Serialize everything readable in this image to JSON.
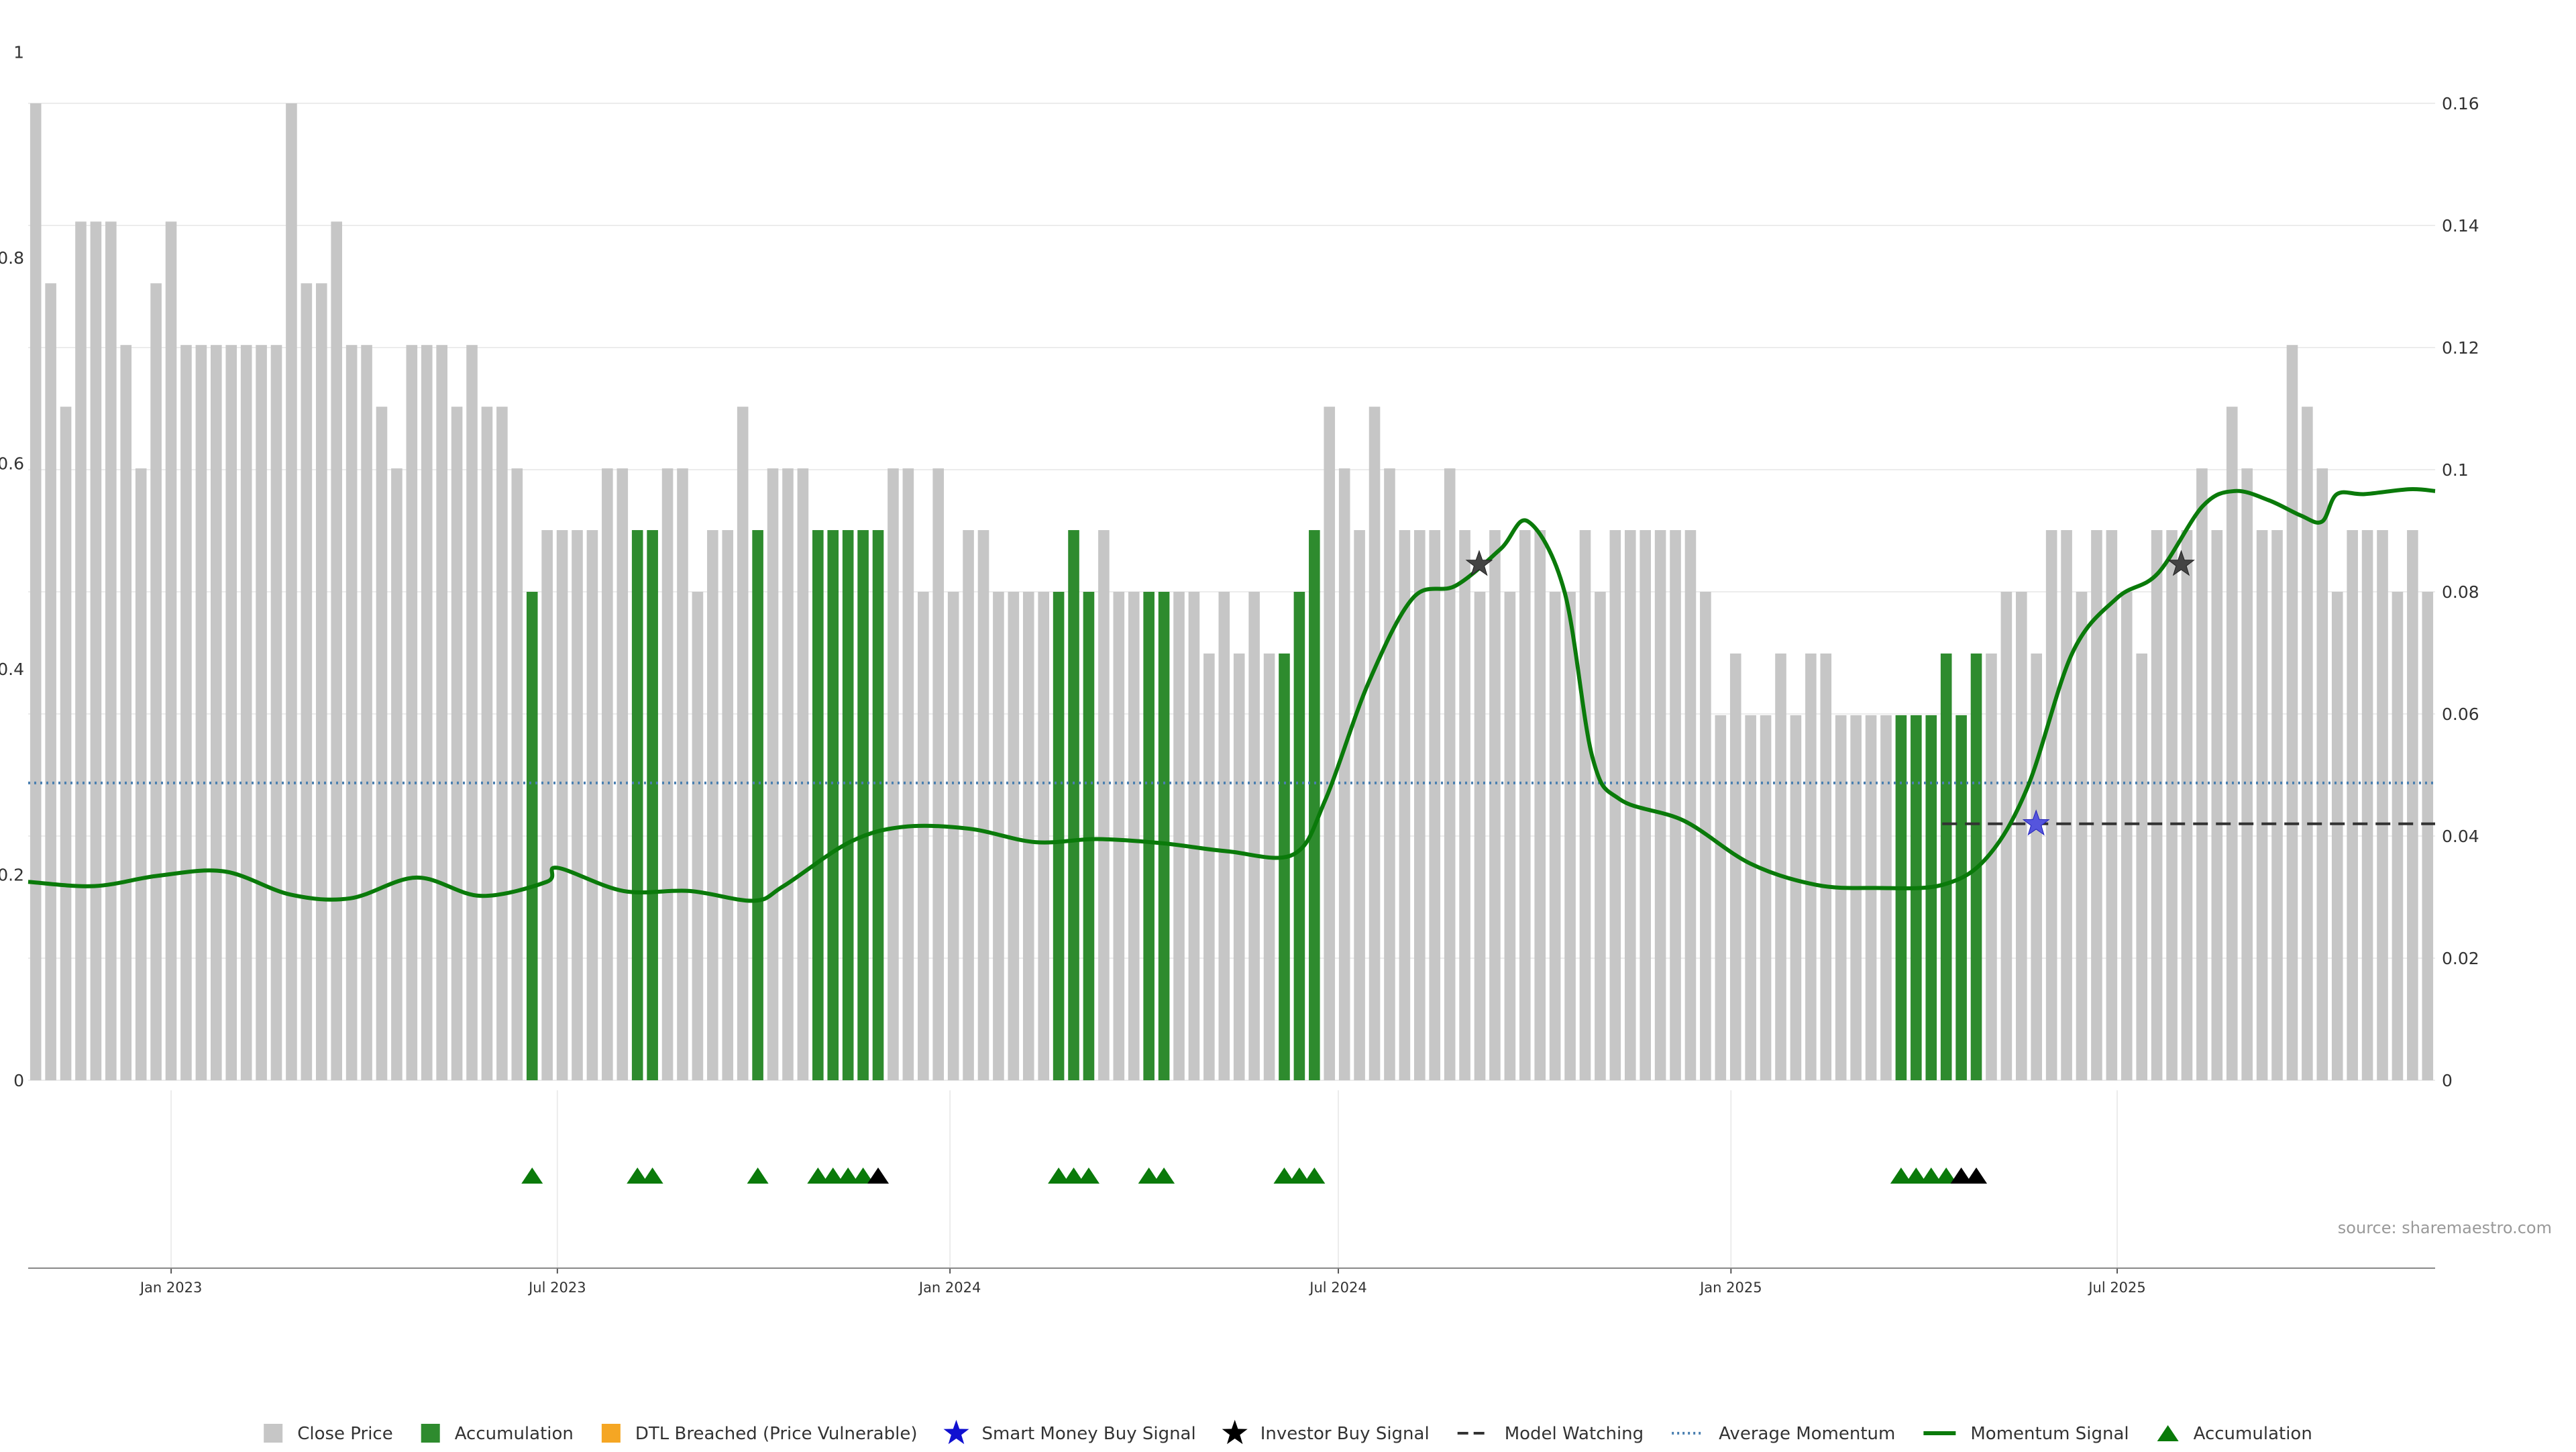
{
  "chart_data": {
    "type": "bar",
    "title": "",
    "source_label": "source: sharemaestro.com",
    "colors": {
      "close_price": "#c6c6c6",
      "accumulation": "#2e8b2e",
      "dtl": "#f5a623",
      "smart_money": "#1010d0",
      "investor": "#000000",
      "model_watching": "#333333",
      "average_momentum": "#4a7fb0",
      "momentum_signal": "#0a7a0a",
      "accumulation_marker": "#0a7a0a"
    },
    "left_axis": {
      "ylim": [
        0,
        0.95
      ],
      "ticks": [
        0,
        0.2,
        0.4,
        0.6,
        0.8,
        1
      ],
      "tick_labels": [
        "0",
        "0.2",
        "0.4",
        "0.6",
        "0.8",
        "1"
      ]
    },
    "right_axis": {
      "ylim": [
        0,
        0.16
      ],
      "ticks": [
        0,
        0.02,
        0.04,
        0.06,
        0.08,
        0.1,
        0.12,
        0.14,
        0.16
      ],
      "tick_labels": [
        "0",
        "0.02",
        "0.04",
        "0.06",
        "0.08",
        "0.1",
        "0.12",
        "0.14",
        "0.16"
      ]
    },
    "x_axis": {
      "start": "2022-10-26",
      "end": "2025-11-27",
      "ticks": [
        {
          "date": "2023-01-01",
          "label": "Jan 2023"
        },
        {
          "date": "2023-07-01",
          "label": "Jul 2023"
        },
        {
          "date": "2024-01-01",
          "label": "Jan 2024"
        },
        {
          "date": "2024-07-01",
          "label": "Jul 2024"
        },
        {
          "date": "2025-01-01",
          "label": "Jan 2025"
        },
        {
          "date": "2025-07-01",
          "label": "Jul 2025"
        }
      ]
    },
    "bars": {
      "values": [
        0.95,
        0.775,
        0.655,
        0.835,
        0.835,
        0.835,
        0.715,
        0.595,
        0.775,
        0.835,
        0.715,
        0.715,
        0.715,
        0.715,
        0.715,
        0.715,
        0.715,
        0.95,
        0.775,
        0.775,
        0.835,
        0.715,
        0.715,
        0.655,
        0.595,
        0.715,
        0.715,
        0.715,
        0.655,
        0.715,
        0.655,
        0.655,
        0.595,
        0.475,
        0.535,
        0.535,
        0.535,
        0.535,
        0.595,
        0.595,
        0.535,
        0.535,
        0.595,
        0.595,
        0.475,
        0.535,
        0.535,
        0.655,
        0.535,
        0.595,
        0.595,
        0.595,
        0.535,
        0.535,
        0.535,
        0.535,
        0.535,
        0.595,
        0.595,
        0.475,
        0.595,
        0.475,
        0.535,
        0.535,
        0.475,
        0.475,
        0.475,
        0.475,
        0.475,
        0.535,
        0.475,
        0.535,
        0.475,
        0.475,
        0.475,
        0.475,
        0.475,
        0.475,
        0.415,
        0.475,
        0.415,
        0.475,
        0.415,
        0.415,
        0.475,
        0.535,
        0.655,
        0.595,
        0.535,
        0.655,
        0.595,
        0.535,
        0.535,
        0.535,
        0.595,
        0.535,
        0.475,
        0.535,
        0.475,
        0.535,
        0.535,
        0.475,
        0.475,
        0.535,
        0.475,
        0.535,
        0.535,
        0.535,
        0.535,
        0.535,
        0.535,
        0.475,
        0.355,
        0.415,
        0.355,
        0.355,
        0.415,
        0.355,
        0.415,
        0.415,
        0.355,
        0.355,
        0.355,
        0.355,
        0.355,
        0.355,
        0.355,
        0.415,
        0.355,
        0.415,
        0.415,
        0.475,
        0.475,
        0.415,
        0.535,
        0.535,
        0.475,
        0.535,
        0.535,
        0.475,
        0.415,
        0.535,
        0.535,
        0.535,
        0.595,
        0.535,
        0.655,
        0.595,
        0.535,
        0.535,
        0.715,
        0.655,
        0.595,
        0.475,
        0.535,
        0.535,
        0.535,
        0.475,
        0.535,
        0.475
      ],
      "accumulation_indices": [
        33,
        40,
        41,
        48,
        52,
        53,
        54,
        55,
        56,
        68,
        69,
        70,
        74,
        75,
        83,
        84,
        85,
        124,
        125,
        126,
        127,
        128,
        129
      ]
    },
    "momentum_signal": [
      {
        "date": "2022-10-26",
        "value": 0.0325
      },
      {
        "date": "2022-11-26",
        "value": 0.0318
      },
      {
        "date": "2022-12-26",
        "value": 0.0335
      },
      {
        "date": "2023-01-26",
        "value": 0.0342
      },
      {
        "date": "2023-02-26",
        "value": 0.0304
      },
      {
        "date": "2023-03-26",
        "value": 0.0298
      },
      {
        "date": "2023-04-26",
        "value": 0.0332
      },
      {
        "date": "2023-05-26",
        "value": 0.0302
      },
      {
        "date": "2023-06-26",
        "value": 0.0325
      },
      {
        "date": "2023-07-01",
        "value": 0.0348
      },
      {
        "date": "2023-08-01",
        "value": 0.031
      },
      {
        "date": "2023-09-01",
        "value": 0.031
      },
      {
        "date": "2023-10-01",
        "value": 0.0294
      },
      {
        "date": "2023-10-15",
        "value": 0.0318
      },
      {
        "date": "2023-11-15",
        "value": 0.039
      },
      {
        "date": "2023-12-10",
        "value": 0.0415
      },
      {
        "date": "2024-01-10",
        "value": 0.0412
      },
      {
        "date": "2024-02-10",
        "value": 0.039
      },
      {
        "date": "2024-03-10",
        "value": 0.0395
      },
      {
        "date": "2024-04-10",
        "value": 0.0388
      },
      {
        "date": "2024-05-10",
        "value": 0.0375
      },
      {
        "date": "2024-06-10",
        "value": 0.037
      },
      {
        "date": "2024-06-25",
        "value": 0.046
      },
      {
        "date": "2024-07-15",
        "value": 0.065
      },
      {
        "date": "2024-08-05",
        "value": 0.079
      },
      {
        "date": "2024-08-25",
        "value": 0.081
      },
      {
        "date": "2024-09-15",
        "value": 0.087
      },
      {
        "date": "2024-09-28",
        "value": 0.0915
      },
      {
        "date": "2024-10-15",
        "value": 0.08
      },
      {
        "date": "2024-10-28",
        "value": 0.053
      },
      {
        "date": "2024-11-10",
        "value": 0.046
      },
      {
        "date": "2024-12-10",
        "value": 0.0425
      },
      {
        "date": "2025-01-10",
        "value": 0.0355
      },
      {
        "date": "2025-02-10",
        "value": 0.032
      },
      {
        "date": "2025-03-10",
        "value": 0.0315
      },
      {
        "date": "2025-04-10",
        "value": 0.032
      },
      {
        "date": "2025-05-01",
        "value": 0.0365
      },
      {
        "date": "2025-05-20",
        "value": 0.048
      },
      {
        "date": "2025-06-10",
        "value": 0.07
      },
      {
        "date": "2025-07-01",
        "value": 0.079
      },
      {
        "date": "2025-07-20",
        "value": 0.083
      },
      {
        "date": "2025-08-10",
        "value": 0.094
      },
      {
        "date": "2025-08-25",
        "value": 0.0965
      },
      {
        "date": "2025-09-10",
        "value": 0.095
      },
      {
        "date": "2025-09-25",
        "value": 0.0925
      },
      {
        "date": "2025-10-05",
        "value": 0.0915
      },
      {
        "date": "2025-10-12",
        "value": 0.096
      },
      {
        "date": "2025-10-25",
        "value": 0.096
      },
      {
        "date": "2025-11-15",
        "value": 0.0968
      },
      {
        "date": "2025-11-27",
        "value": 0.0965
      }
    ],
    "average_momentum": 0.0487,
    "model_watching": {
      "from": "2025-04-10",
      "to": "2025-11-27",
      "value": 0.042
    },
    "smart_money_buy_signals": [
      {
        "date": "2025-05-24",
        "value": 0.042
      }
    ],
    "investor_buy_signals": [
      {
        "date": "2024-09-05",
        "value": 0.0845
      },
      {
        "date": "2025-07-31",
        "value": 0.0845
      }
    ],
    "accumulation_markers": [
      {
        "index": 33,
        "color": "green"
      },
      {
        "index": 40,
        "color": "green"
      },
      {
        "index": 41,
        "color": "green"
      },
      {
        "index": 48,
        "color": "green"
      },
      {
        "index": 52,
        "color": "green"
      },
      {
        "index": 53,
        "color": "green"
      },
      {
        "index": 54,
        "color": "green"
      },
      {
        "index": 55,
        "color": "green"
      },
      {
        "index": 56,
        "color": "black"
      },
      {
        "index": 68,
        "color": "green"
      },
      {
        "index": 69,
        "color": "green"
      },
      {
        "index": 70,
        "color": "green"
      },
      {
        "index": 74,
        "color": "green"
      },
      {
        "index": 75,
        "color": "green"
      },
      {
        "index": 83,
        "color": "green"
      },
      {
        "index": 84,
        "color": "green"
      },
      {
        "index": 85,
        "color": "green"
      },
      {
        "index": 124,
        "color": "green"
      },
      {
        "index": 125,
        "color": "green"
      },
      {
        "index": 126,
        "color": "green"
      },
      {
        "index": 127,
        "color": "green"
      },
      {
        "index": 128,
        "color": "black"
      },
      {
        "index": 129,
        "color": "black"
      }
    ],
    "legend_position": "bottom-center",
    "legend": [
      {
        "key": "close",
        "label": "Close Price"
      },
      {
        "key": "accum",
        "label": "Accumulation"
      },
      {
        "key": "dtl",
        "label": "DTL Breached (Price Vulnerable)"
      },
      {
        "key": "smart",
        "label": "Smart Money Buy Signal"
      },
      {
        "key": "investor",
        "label": "Investor Buy Signal"
      },
      {
        "key": "watch",
        "label": "Model Watching"
      },
      {
        "key": "avg",
        "label": "Average Momentum"
      },
      {
        "key": "momentum",
        "label": "Momentum Signal"
      },
      {
        "key": "tri",
        "label": "Accumulation"
      }
    ]
  }
}
